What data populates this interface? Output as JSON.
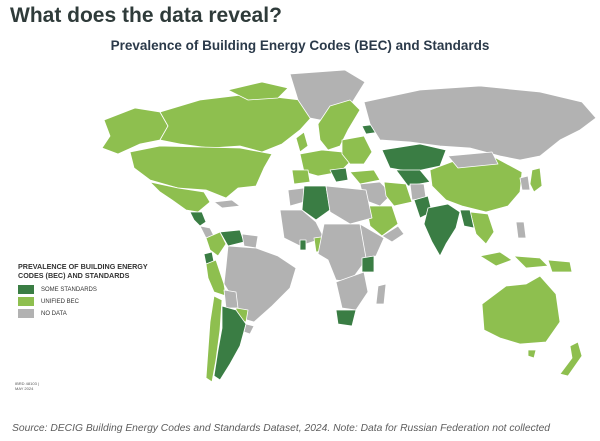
{
  "heading": "What does the data reveal?",
  "map_title": "Prevalence of Building Energy Codes (BEC) and Standards",
  "legend": {
    "title": "PREVALENCE OF BUILDING ENERGY CODES (BEC) AND STANDARDS",
    "items": [
      {
        "label": "SOME STANDARDS",
        "color": "#3a7d44"
      },
      {
        "label": "UNIFIED BEC",
        "color": "#8ebf4f"
      },
      {
        "label": "NO DATA",
        "color": "#b2b2b2"
      }
    ]
  },
  "ref_note": {
    "line1": "IBRD 48103 |",
    "line2": "MAY 2024"
  },
  "source": "Source: DECIG Building Energy Codes and Standards Dataset, 2024. Note: Data for Russian Federation not collected",
  "colors": {
    "some_standards": "#3a7d44",
    "unified_bec": "#8ebf4f",
    "no_data": "#b2b2b2",
    "border": "#ffffff"
  }
}
